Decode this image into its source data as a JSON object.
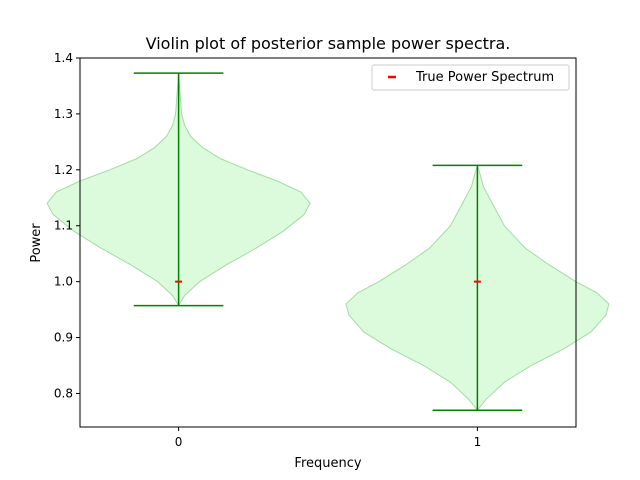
{
  "chart_data": {
    "type": "violin",
    "title": "Violin plot of posterior sample power spectra.",
    "xlabel": "Frequency",
    "ylabel": "Power",
    "xlim": [
      -0.33,
      1.33
    ],
    "ylim": [
      0.74,
      1.4
    ],
    "xticks": [
      0,
      1
    ],
    "yticks": [
      0.8,
      0.9,
      1.0,
      1.1,
      1.2,
      1.3,
      1.4
    ],
    "ytick_labels": [
      "0.8",
      "0.9",
      "1.0",
      "1.1",
      "1.2",
      "1.3",
      "1.4"
    ],
    "grid": false,
    "legend_position": "top-right",
    "legend": [
      {
        "label": "True Power Spectrum",
        "marker": "dash",
        "color": "#ff0000"
      }
    ],
    "colors": {
      "violin_fill": "#dcfadc",
      "violin_edge": "#a3dba3",
      "stats_line": "#008000",
      "true_marker": "#ff0000"
    },
    "violins": [
      {
        "x": 0,
        "min": 0.957,
        "max": 1.373,
        "true_value": 1.0,
        "profile": [
          [
            0.957,
            0.0
          ],
          [
            0.975,
            0.02
          ],
          [
            1.0,
            0.07
          ],
          [
            1.03,
            0.16
          ],
          [
            1.06,
            0.26
          ],
          [
            1.09,
            0.35
          ],
          [
            1.12,
            0.42
          ],
          [
            1.14,
            0.44
          ],
          [
            1.16,
            0.41
          ],
          [
            1.18,
            0.33
          ],
          [
            1.2,
            0.23
          ],
          [
            1.22,
            0.14
          ],
          [
            1.24,
            0.08
          ],
          [
            1.26,
            0.04
          ],
          [
            1.28,
            0.02
          ],
          [
            1.3,
            0.01
          ],
          [
            1.373,
            0.0
          ]
        ]
      },
      {
        "x": 1,
        "min": 0.77,
        "max": 1.208,
        "true_value": 1.0,
        "profile": [
          [
            0.77,
            0.0
          ],
          [
            0.79,
            0.03
          ],
          [
            0.82,
            0.09
          ],
          [
            0.85,
            0.18
          ],
          [
            0.88,
            0.29
          ],
          [
            0.91,
            0.38
          ],
          [
            0.94,
            0.43
          ],
          [
            0.96,
            0.44
          ],
          [
            0.98,
            0.4
          ],
          [
            1.0,
            0.33
          ],
          [
            1.03,
            0.24
          ],
          [
            1.06,
            0.16
          ],
          [
            1.1,
            0.09
          ],
          [
            1.14,
            0.05
          ],
          [
            1.17,
            0.02
          ],
          [
            1.19,
            0.01
          ],
          [
            1.208,
            0.0
          ]
        ]
      }
    ]
  }
}
